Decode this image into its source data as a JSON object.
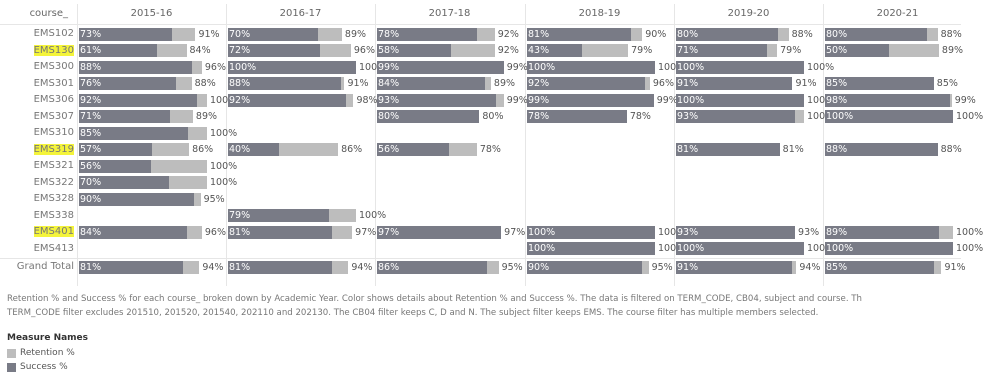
{
  "row_header": "course_",
  "chart_data": {
    "type": "bar",
    "columns": [
      "2015-16",
      "2016-17",
      "2017-18",
      "2018-19",
      "2019-20",
      "2020-21"
    ],
    "rows": [
      {
        "course": "EMS102",
        "highlight": false,
        "vals": [
          [
            73,
            91
          ],
          [
            70,
            89
          ],
          [
            78,
            92
          ],
          [
            81,
            90
          ],
          [
            80,
            88
          ],
          [
            80,
            88
          ]
        ]
      },
      {
        "course": "EMS130",
        "highlight": true,
        "vals": [
          [
            61,
            84
          ],
          [
            72,
            96
          ],
          [
            58,
            92
          ],
          [
            43,
            79
          ],
          [
            71,
            79
          ],
          [
            50,
            89
          ]
        ]
      },
      {
        "course": "EMS300",
        "highlight": false,
        "vals": [
          [
            88,
            96
          ],
          [
            100,
            100
          ],
          [
            99,
            99
          ],
          [
            100,
            100
          ],
          [
            100,
            100
          ],
          null
        ]
      },
      {
        "course": "EMS301",
        "highlight": false,
        "vals": [
          [
            76,
            88
          ],
          [
            88,
            91
          ],
          [
            84,
            89
          ],
          [
            92,
            96
          ],
          [
            91,
            91
          ],
          [
            85,
            85
          ]
        ]
      },
      {
        "course": "EMS306",
        "highlight": false,
        "vals": [
          [
            92,
            100
          ],
          [
            92,
            98
          ],
          [
            93,
            99
          ],
          [
            99,
            99
          ],
          [
            100,
            100
          ],
          [
            98,
            99
          ]
        ]
      },
      {
        "course": "EMS307",
        "highlight": false,
        "vals": [
          [
            71,
            89
          ],
          null,
          [
            80,
            80
          ],
          [
            78,
            78
          ],
          [
            93,
            100
          ],
          [
            100,
            100
          ]
        ]
      },
      {
        "course": "EMS310",
        "highlight": false,
        "vals": [
          [
            85,
            100
          ],
          null,
          null,
          null,
          null,
          null
        ]
      },
      {
        "course": "EMS319",
        "highlight": true,
        "vals": [
          [
            57,
            86
          ],
          [
            40,
            86
          ],
          [
            56,
            78
          ],
          null,
          [
            81,
            81
          ],
          [
            88,
            88
          ]
        ]
      },
      {
        "course": "EMS321",
        "highlight": false,
        "vals": [
          [
            56,
            100
          ],
          null,
          null,
          null,
          null,
          null
        ]
      },
      {
        "course": "EMS322",
        "highlight": false,
        "vals": [
          [
            70,
            100
          ],
          null,
          null,
          null,
          null,
          null
        ]
      },
      {
        "course": "EMS328",
        "highlight": false,
        "vals": [
          [
            90,
            95
          ],
          null,
          null,
          null,
          null,
          null
        ]
      },
      {
        "course": "EMS338",
        "highlight": false,
        "vals": [
          null,
          [
            79,
            100
          ],
          null,
          null,
          null,
          null
        ]
      },
      {
        "course": "EMS401",
        "highlight": true,
        "vals": [
          [
            84,
            96
          ],
          [
            81,
            97
          ],
          [
            97,
            97
          ],
          [
            100,
            100
          ],
          [
            93,
            93
          ],
          [
            89,
            100
          ]
        ]
      },
      {
        "course": "EMS413",
        "highlight": false,
        "vals": [
          null,
          null,
          null,
          [
            100,
            100
          ],
          [
            100,
            100
          ],
          [
            100,
            100
          ]
        ]
      },
      {
        "course": "Grand Total",
        "highlight": false,
        "vals": [
          [
            81,
            94
          ],
          [
            81,
            94
          ],
          [
            86,
            95
          ],
          [
            90,
            95
          ],
          [
            91,
            94
          ],
          [
            85,
            91
          ]
        ]
      }
    ],
    "value_format": "percent",
    "max_value": 100
  },
  "caption": {
    "line1": "Retention % and Success % for each course_ broken down by Academic Year.  Color shows details about Retention % and Success %. The data is filtered on TERM_CODE, CB04, subject and course. Th",
    "line2": "TERM_CODE filter excludes 201510, 201520, 201540, 202110 and 202130. The CB04 filter keeps C, D and N. The subject filter keeps EMS. The course filter has multiple members selected."
  },
  "legend": {
    "title": "Measure Names",
    "items": [
      {
        "label": "Retention %",
        "color": "#bdbdbd"
      },
      {
        "label": "Success %",
        "color": "#797b86"
      }
    ]
  }
}
